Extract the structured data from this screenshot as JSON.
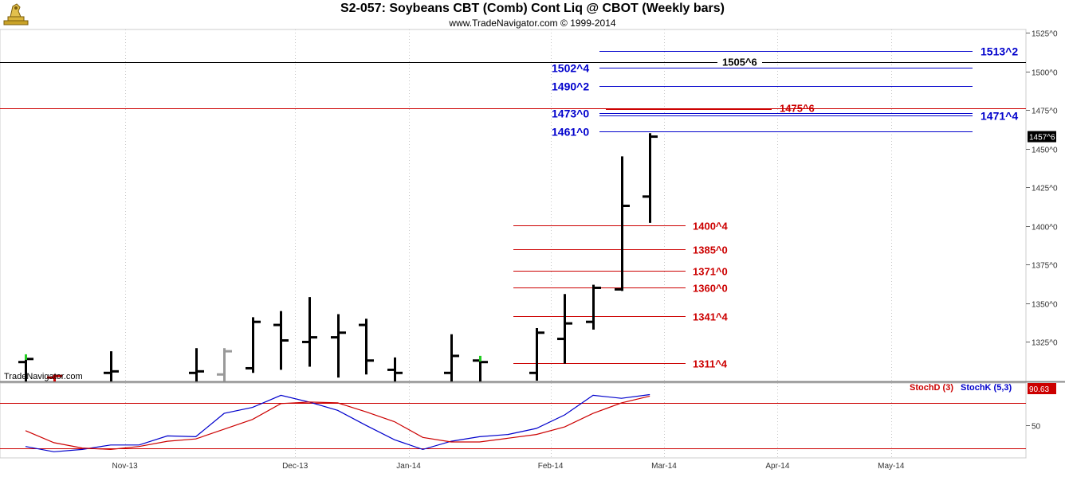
{
  "header": {
    "title": "S2-057:  Soybeans CBT (Comb) Cont Liq @ CBOT  (Weekly bars)",
    "subtitle": "www.TradeNavigator.com © 1999-2014",
    "watermark": "TradeNavigator.com"
  },
  "colors": {
    "price_bar": "#000000",
    "blue_level": "#0000cc",
    "red_level": "#cc0000",
    "stoch_k": "#0000cc",
    "stoch_d": "#cc0000",
    "up_tick": "#22cc22"
  },
  "chart_data": [
    {
      "type": "ohlc",
      "panel": "price",
      "title": "S2-057:  Soybeans CBT (Comb) Cont Liq @ CBOT  (Weekly bars)",
      "y_axis_position": "right",
      "ylim": [
        1296,
        1534
      ],
      "y_ticks": [
        1325,
        1350,
        1375,
        1400,
        1425,
        1450,
        1475,
        1500,
        1525
      ],
      "y_tick_labels": [
        "1325^0",
        "1350^0",
        "1375^0",
        "1400^0",
        "1425^0",
        "1450^0",
        "1475^0",
        "1500^0",
        "1525^0"
      ],
      "last_price_label": "1457^6",
      "last_price": 1457.75,
      "x_axis": {
        "labels": [
          "Nov-13",
          "Dec-13",
          "Jan-14",
          "Feb-14",
          "Mar-14",
          "Apr-14",
          "May-14"
        ],
        "label_week_index": [
          3.5,
          9.5,
          13.5,
          18.5,
          22.5,
          26.5,
          30.5
        ]
      },
      "bars": [
        {
          "i": 0,
          "open": 1312,
          "high": 1316,
          "low": 1296,
          "close": 1314,
          "color": "#000000"
        },
        {
          "i": 1,
          "open": 1302,
          "high": 1304,
          "low": 1296,
          "close": 1303,
          "color": "#cc0000"
        },
        {
          "i": 3,
          "open": 1305,
          "high": 1319,
          "low": 1296,
          "close": 1306,
          "color": "#000000"
        },
        {
          "i": 6,
          "open": 1305,
          "high": 1321,
          "low": 1296,
          "close": 1306,
          "color": "#000000"
        },
        {
          "i": 7,
          "open": 1304,
          "high": 1321,
          "low": 1296,
          "close": 1319,
          "color": "#999999"
        },
        {
          "i": 8,
          "open": 1308,
          "high": 1341,
          "low": 1305,
          "close": 1338,
          "color": "#000000"
        },
        {
          "i": 9,
          "open": 1336,
          "high": 1345,
          "low": 1307,
          "close": 1326,
          "color": "#000000"
        },
        {
          "i": 10,
          "open": 1325,
          "high": 1354,
          "low": 1309,
          "close": 1328,
          "color": "#000000"
        },
        {
          "i": 11,
          "open": 1328,
          "high": 1343,
          "low": 1302,
          "close": 1331,
          "color": "#000000"
        },
        {
          "i": 12,
          "open": 1336,
          "high": 1340,
          "low": 1304,
          "close": 1313,
          "color": "#000000"
        },
        {
          "i": 13,
          "open": 1307,
          "high": 1315,
          "low": 1296,
          "close": 1305,
          "color": "#000000"
        },
        {
          "i": 15,
          "open": 1305,
          "high": 1330,
          "low": 1296,
          "close": 1316,
          "color": "#000000"
        },
        {
          "i": 16,
          "open": 1313,
          "high": 1315,
          "low": 1296,
          "close": 1312,
          "color": "#000000"
        },
        {
          "i": 18,
          "open": 1305,
          "high": 1334,
          "low": 1300,
          "close": 1331,
          "color": "#000000"
        },
        {
          "i": 19,
          "open": 1327,
          "high": 1356,
          "low": 1311,
          "close": 1337,
          "color": "#000000"
        },
        {
          "i": 20,
          "open": 1338,
          "high": 1362,
          "low": 1333,
          "close": 1360,
          "color": "#000000"
        },
        {
          "i": 21,
          "open": 1359,
          "high": 1445,
          "low": 1358,
          "close": 1413,
          "color": "#000000"
        },
        {
          "i": 22,
          "open": 1419,
          "high": 1460,
          "low": 1402,
          "close": 1457.75,
          "color": "#000000"
        }
      ],
      "up_ticks": [
        {
          "i": 0,
          "value": 1316
        },
        {
          "i": 16,
          "value": 1315
        }
      ],
      "horizontal_lines": [
        {
          "value": 1506,
          "color": "#000000",
          "style": "full"
        },
        {
          "value": 1476,
          "color": "#cc0000",
          "style": "full"
        }
      ],
      "blue_levels": [
        {
          "label": "1513^2",
          "value": 1513.25,
          "label_side": "right"
        },
        {
          "label": "1502^4",
          "value": 1502.5,
          "label_side": "left"
        },
        {
          "label": "1490^2",
          "value": 1490.25,
          "label_side": "left"
        },
        {
          "label": "1473^0",
          "value": 1473,
          "label_side": "left"
        },
        {
          "label": "1471^4",
          "value": 1471.5,
          "label_side": "right"
        },
        {
          "label": "1461^0",
          "value": 1461,
          "label_side": "left"
        }
      ],
      "red_levels": [
        {
          "label": "1400^4",
          "value": 1400.5
        },
        {
          "label": "1385^0",
          "value": 1385
        },
        {
          "label": "1371^0",
          "value": 1371
        },
        {
          "label": "1360^0",
          "value": 1360
        },
        {
          "label": "1341^4",
          "value": 1341.5
        },
        {
          "label": "1311^4",
          "value": 1311.5
        }
      ],
      "annotations": [
        {
          "text": "1505^6",
          "value": 1505.75,
          "color": "#000000"
        },
        {
          "text": "1475^6",
          "value": 1475.75,
          "color": "#cc0000"
        }
      ]
    },
    {
      "type": "line",
      "panel": "stochastic",
      "ylim": [
        10,
        108
      ],
      "y_ticks": [
        50
      ],
      "y_tick_labels": [
        "50"
      ],
      "reference_lines": [
        80,
        20
      ],
      "last_value_label": "90.63",
      "legend": [
        {
          "name": "StochD (3)",
          "color": "#cc0000"
        },
        {
          "name": "StochK (5,3)",
          "color": "#0000cc"
        }
      ],
      "series": [
        {
          "name": "StochK (5,3)",
          "x": [
            0,
            1,
            2,
            3,
            4,
            5,
            6,
            7,
            8,
            9,
            10,
            11,
            12,
            13,
            14,
            15,
            16,
            17,
            18,
            19,
            20,
            21,
            22
          ],
          "values": [
            22,
            15,
            18,
            24,
            24,
            36,
            35,
            66,
            74,
            90,
            81,
            70,
            50,
            31,
            18,
            29,
            35,
            38,
            46,
            64,
            90,
            86,
            91
          ]
        },
        {
          "name": "StochD (3)",
          "x": [
            0,
            1,
            2,
            3,
            4,
            5,
            6,
            7,
            8,
            9,
            10,
            11,
            12,
            13,
            14,
            15,
            16,
            17,
            18,
            19,
            20,
            21,
            22
          ],
          "values": [
            43,
            27,
            20,
            18,
            22,
            29,
            32,
            45,
            58,
            79,
            81,
            80,
            68,
            55,
            34,
            28,
            28,
            33,
            38,
            48,
            66,
            80,
            89
          ]
        }
      ]
    }
  ]
}
